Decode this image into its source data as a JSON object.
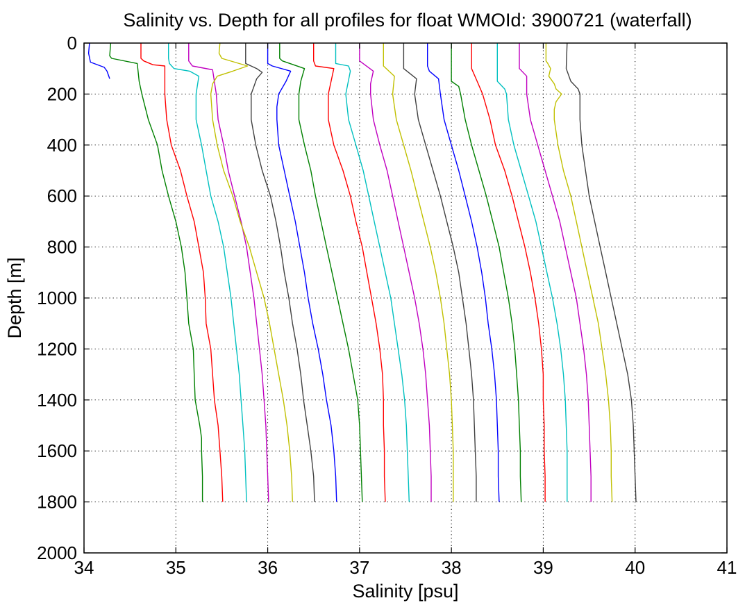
{
  "chart_data": {
    "type": "line",
    "title": "Salinity vs. Depth for all profiles for float WMOId: 3900721 (waterfall)",
    "xlabel": "Salinity [psu]",
    "ylabel": "Depth [m]",
    "xlim": [
      34,
      41
    ],
    "ylim": [
      0,
      2000
    ],
    "y_reversed": true,
    "grid": true,
    "grid_style": "dotted",
    "legend": false,
    "xticks": [
      34,
      35,
      36,
      37,
      38,
      39,
      40,
      41
    ],
    "yticks": [
      0,
      200,
      400,
      600,
      800,
      1000,
      1200,
      1400,
      1600,
      1800,
      2000
    ],
    "xtick_labels": [
      "34",
      "35",
      "36",
      "37",
      "38",
      "39",
      "40",
      "41"
    ],
    "ytick_labels": [
      "0",
      "200",
      "400",
      "600",
      "800",
      "1000",
      "1200",
      "1400",
      "1600",
      "1800",
      "2000"
    ],
    "series": [
      {
        "color": "#0000ff",
        "depths": [
          0,
          40,
          75,
          95,
          110,
          140
        ],
        "salinity": [
          34.06,
          34.05,
          34.07,
          34.22,
          34.25,
          34.28
        ]
      },
      {
        "color": "#008000",
        "depths": [
          0,
          50,
          60,
          80,
          150,
          200,
          300,
          400,
          500,
          600,
          700,
          800,
          900,
          1000,
          1100,
          1200,
          1300,
          1400,
          1500,
          1550,
          1600,
          1700,
          1800
        ],
        "salinity": [
          34.29,
          34.28,
          34.3,
          34.58,
          34.6,
          34.63,
          34.7,
          34.8,
          34.85,
          34.92,
          35.0,
          35.06,
          35.1,
          35.12,
          35.14,
          35.19,
          35.2,
          35.21,
          35.26,
          35.28,
          35.28,
          35.29,
          35.29
        ]
      },
      {
        "color": "#ff0000",
        "depths": [
          0,
          60,
          70,
          85,
          90,
          200,
          300,
          400,
          500,
          600,
          700,
          800,
          900,
          1000,
          1100,
          1200,
          1300,
          1400,
          1500,
          1600,
          1700,
          1800
        ],
        "salinity": [
          34.62,
          34.62,
          34.65,
          34.75,
          34.88,
          34.88,
          34.9,
          34.95,
          35.05,
          35.12,
          35.2,
          35.25,
          35.3,
          35.32,
          35.33,
          35.38,
          35.4,
          35.42,
          35.46,
          35.48,
          35.5,
          35.51
        ]
      },
      {
        "color": "#00c0c0",
        "depths": [
          0,
          60,
          80,
          100,
          110,
          130,
          200,
          300,
          400,
          500,
          600,
          700,
          800,
          900,
          1000,
          1100,
          1200,
          1300,
          1400,
          1500,
          1600,
          1700,
          1800
        ],
        "salinity": [
          34.92,
          34.92,
          34.93,
          34.98,
          35.15,
          35.25,
          35.22,
          35.22,
          35.28,
          35.33,
          35.38,
          35.46,
          35.52,
          35.56,
          35.6,
          35.63,
          35.66,
          35.69,
          35.71,
          35.73,
          35.75,
          35.76,
          35.77
        ]
      },
      {
        "color": "#c000c0",
        "depths": [
          0,
          70,
          90,
          105,
          200,
          300,
          400,
          500,
          600,
          700,
          800,
          900,
          1000,
          1100,
          1200,
          1300,
          1400,
          1500,
          1600,
          1700,
          1800
        ],
        "salinity": [
          35.14,
          35.14,
          35.18,
          35.4,
          35.44,
          35.46,
          35.52,
          35.57,
          35.64,
          35.71,
          35.77,
          35.81,
          35.85,
          35.88,
          35.91,
          35.94,
          35.96,
          35.98,
          35.99,
          36.0,
          36.01
        ]
      },
      {
        "color": "#c0c000",
        "depths": [
          0,
          40,
          60,
          90,
          110,
          130,
          160,
          200,
          300,
          400,
          500,
          600,
          700,
          800,
          900,
          1000,
          1100,
          1200,
          1300,
          1400,
          1500,
          1600,
          1700,
          1800
        ],
        "salinity": [
          35.48,
          35.47,
          35.5,
          35.78,
          35.62,
          35.45,
          35.4,
          35.38,
          35.4,
          35.45,
          35.52,
          35.62,
          35.7,
          35.8,
          35.88,
          35.96,
          36.02,
          36.07,
          36.12,
          36.17,
          36.21,
          36.24,
          36.26,
          36.27
        ]
      },
      {
        "color": "#404040",
        "depths": [
          0,
          80,
          100,
          115,
          140,
          200,
          300,
          400,
          500,
          600,
          700,
          800,
          900,
          1000,
          1100,
          1200,
          1300,
          1400,
          1500,
          1600,
          1700,
          1800
        ],
        "salinity": [
          35.76,
          35.76,
          35.88,
          35.94,
          35.88,
          35.82,
          35.82,
          35.87,
          35.94,
          36.03,
          36.09,
          36.14,
          36.18,
          36.23,
          36.27,
          36.32,
          36.36,
          36.39,
          36.43,
          36.47,
          36.5,
          36.51
        ]
      },
      {
        "color": "#0000ff",
        "depths": [
          0,
          80,
          90,
          110,
          150,
          200,
          250,
          300,
          400,
          500,
          600,
          700,
          800,
          900,
          1000,
          1100,
          1200,
          1300,
          1400,
          1500,
          1600,
          1700,
          1800
        ],
        "salinity": [
          36.0,
          36.0,
          36.05,
          36.25,
          36.2,
          36.12,
          36.1,
          36.1,
          36.12,
          36.18,
          36.24,
          36.3,
          36.35,
          36.4,
          36.44,
          36.49,
          36.55,
          36.6,
          36.64,
          36.69,
          36.72,
          36.74,
          36.75
        ]
      },
      {
        "color": "#008000",
        "depths": [
          0,
          60,
          70,
          100,
          150,
          200,
          300,
          400,
          500,
          600,
          700,
          800,
          900,
          1000,
          1100,
          1200,
          1300,
          1400,
          1500,
          1600,
          1700,
          1800
        ],
        "salinity": [
          36.13,
          36.13,
          36.16,
          36.4,
          36.36,
          36.34,
          36.34,
          36.4,
          36.47,
          36.52,
          36.58,
          36.64,
          36.7,
          36.76,
          36.82,
          36.88,
          36.93,
          36.98,
          37.0,
          37.01,
          37.02,
          37.03
        ]
      },
      {
        "color": "#ff0000",
        "depths": [
          0,
          70,
          90,
          100,
          200,
          300,
          400,
          500,
          600,
          700,
          800,
          900,
          1000,
          1100,
          1200,
          1300,
          1400,
          1500,
          1600,
          1700,
          1800
        ],
        "salinity": [
          36.5,
          36.5,
          36.52,
          36.72,
          36.66,
          36.66,
          36.72,
          36.82,
          36.9,
          36.96,
          37.03,
          37.08,
          37.13,
          37.18,
          37.22,
          37.25,
          37.26,
          37.26,
          37.27,
          37.27,
          37.28
        ]
      },
      {
        "color": "#00c0c0",
        "depths": [
          0,
          80,
          90,
          110,
          200,
          300,
          400,
          500,
          600,
          700,
          800,
          900,
          1000,
          1100,
          1200,
          1300,
          1400,
          1500,
          1600,
          1700,
          1800
        ],
        "salinity": [
          36.74,
          36.74,
          36.88,
          36.9,
          36.85,
          36.88,
          36.96,
          37.04,
          37.1,
          37.16,
          37.22,
          37.28,
          37.34,
          37.38,
          37.42,
          37.46,
          37.49,
          37.51,
          37.52,
          37.53,
          37.54
        ]
      },
      {
        "color": "#c000c0",
        "depths": [
          0,
          70,
          110,
          160,
          200,
          300,
          400,
          500,
          600,
          700,
          800,
          900,
          1000,
          1100,
          1200,
          1300,
          1400,
          1500,
          1600,
          1700,
          1800
        ],
        "salinity": [
          37.0,
          37.0,
          37.15,
          37.12,
          37.12,
          37.15,
          37.22,
          37.3,
          37.36,
          37.42,
          37.48,
          37.54,
          37.6,
          37.65,
          37.69,
          37.72,
          37.74,
          37.76,
          37.77,
          37.78,
          37.78
        ]
      },
      {
        "color": "#c0c000",
        "depths": [
          0,
          90,
          130,
          200,
          300,
          400,
          500,
          600,
          700,
          800,
          900,
          1000,
          1100,
          1200,
          1300,
          1400,
          1500,
          1600,
          1700,
          1800
        ],
        "salinity": [
          37.26,
          37.26,
          37.38,
          37.36,
          37.4,
          37.48,
          37.56,
          37.63,
          37.7,
          37.77,
          37.83,
          37.88,
          37.92,
          37.95,
          37.98,
          38.0,
          38.01,
          38.02,
          38.02,
          38.02
        ]
      },
      {
        "color": "#404040",
        "depths": [
          0,
          100,
          140,
          200,
          300,
          400,
          500,
          600,
          700,
          800,
          900,
          1000,
          1100,
          1200,
          1300,
          1400,
          1500,
          1600,
          1700,
          1800
        ],
        "salinity": [
          37.48,
          37.48,
          37.62,
          37.6,
          37.64,
          37.72,
          37.8,
          37.88,
          37.95,
          38.02,
          38.08,
          38.12,
          38.16,
          38.19,
          38.22,
          38.24,
          38.25,
          38.26,
          38.27,
          38.27
        ]
      },
      {
        "color": "#0000ff",
        "depths": [
          0,
          90,
          110,
          140,
          200,
          300,
          400,
          500,
          600,
          700,
          800,
          900,
          1000,
          1100,
          1200,
          1300,
          1400,
          1500,
          1600,
          1700,
          1800
        ],
        "salinity": [
          37.74,
          37.74,
          37.76,
          37.86,
          37.88,
          37.92,
          38.0,
          38.08,
          38.15,
          38.22,
          38.28,
          38.33,
          38.37,
          38.4,
          38.44,
          38.47,
          38.49,
          38.5,
          38.51,
          38.51,
          38.52
        ]
      },
      {
        "color": "#008000",
        "depths": [
          0,
          150,
          170,
          200,
          300,
          400,
          500,
          600,
          700,
          800,
          900,
          1000,
          1100,
          1200,
          1300,
          1400,
          1500,
          1600,
          1700,
          1800
        ],
        "salinity": [
          38.0,
          38.0,
          38.08,
          38.1,
          38.15,
          38.22,
          38.3,
          38.38,
          38.45,
          38.52,
          38.57,
          38.62,
          38.66,
          38.69,
          38.71,
          38.73,
          38.74,
          38.75,
          38.75,
          38.76
        ]
      },
      {
        "color": "#ff0000",
        "depths": [
          0,
          100,
          150,
          200,
          300,
          400,
          500,
          600,
          700,
          800,
          900,
          1000,
          1100,
          1200,
          1300,
          1400,
          1500,
          1600,
          1700,
          1800
        ],
        "salinity": [
          38.22,
          38.22,
          38.28,
          38.34,
          38.42,
          38.48,
          38.58,
          38.66,
          38.73,
          38.8,
          38.86,
          38.91,
          38.95,
          38.98,
          39.0,
          39.0,
          39.01,
          39.01,
          39.02,
          39.02
        ]
      },
      {
        "color": "#00c0c0",
        "depths": [
          0,
          150,
          180,
          200,
          300,
          400,
          500,
          600,
          700,
          800,
          900,
          1000,
          1100,
          1200,
          1300,
          1400,
          1500,
          1600,
          1700,
          1800
        ],
        "salinity": [
          38.5,
          38.5,
          38.58,
          38.6,
          38.62,
          38.68,
          38.76,
          38.84,
          38.92,
          38.98,
          39.04,
          39.1,
          39.15,
          39.19,
          39.22,
          39.24,
          39.25,
          39.26,
          39.26,
          39.26
        ]
      },
      {
        "color": "#c000c0",
        "depths": [
          0,
          100,
          130,
          200,
          300,
          400,
          500,
          600,
          700,
          800,
          900,
          1000,
          1100,
          1200,
          1300,
          1400,
          1500,
          1600,
          1700,
          1800
        ],
        "salinity": [
          38.74,
          38.74,
          38.82,
          38.82,
          38.86,
          38.94,
          39.02,
          39.1,
          39.18,
          39.24,
          39.3,
          39.36,
          39.4,
          39.44,
          39.47,
          39.49,
          39.5,
          39.51,
          39.52,
          39.52
        ]
      },
      {
        "color": "#c0c000",
        "depths": [
          0,
          70,
          80,
          100,
          130,
          160,
          180,
          200,
          230,
          260,
          300,
          400,
          500,
          600,
          700,
          800,
          900,
          1000,
          1100,
          1200,
          1300,
          1400,
          1500,
          1600,
          1700,
          1800
        ],
        "salinity": [
          39.03,
          39.03,
          39.05,
          39.08,
          39.06,
          39.12,
          39.14,
          39.2,
          39.14,
          39.12,
          39.12,
          39.16,
          39.22,
          39.3,
          39.36,
          39.42,
          39.48,
          39.54,
          39.6,
          39.64,
          39.68,
          39.71,
          39.73,
          39.74,
          39.74,
          39.75
        ]
      },
      {
        "color": "#404040",
        "depths": [
          0,
          100,
          150,
          180,
          200,
          250,
          300,
          400,
          500,
          600,
          700,
          800,
          900,
          1000,
          1100,
          1200,
          1300,
          1400,
          1500,
          1600,
          1700,
          1800
        ],
        "salinity": [
          39.26,
          39.25,
          39.3,
          39.38,
          39.4,
          39.4,
          39.4,
          39.42,
          39.46,
          39.5,
          39.56,
          39.62,
          39.68,
          39.74,
          39.8,
          39.86,
          39.92,
          39.96,
          39.98,
          39.99,
          40.0,
          40.01
        ]
      }
    ]
  }
}
